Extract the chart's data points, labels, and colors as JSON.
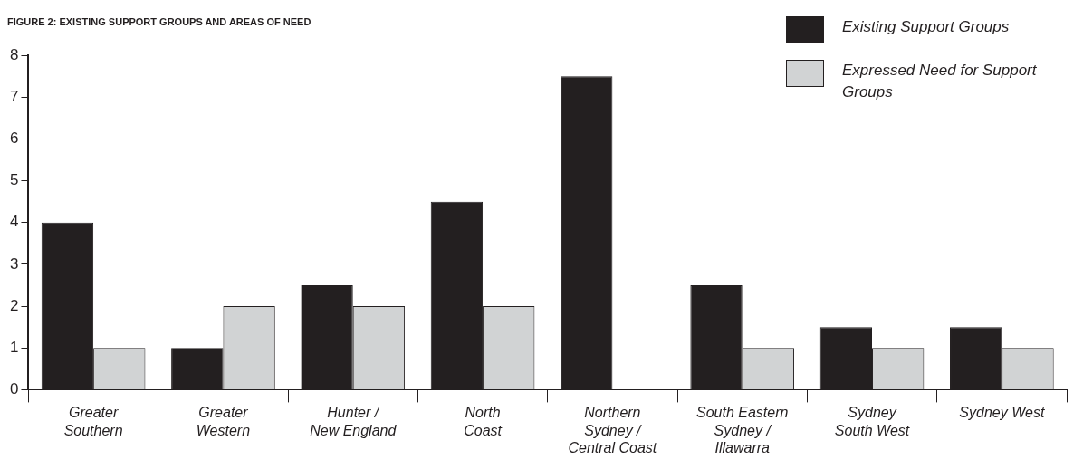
{
  "chart_data": {
    "type": "bar",
    "title": "FIGURE 2: EXISTING SUPPORT GROUPS AND AREAS OF NEED",
    "categories": [
      "Greater\nSouthern",
      "Greater\nWestern",
      "Hunter /\nNew England",
      "North\nCoast",
      "Northern\nSydney /\nCentral Coast",
      "South Eastern\nSydney /\nIllawarra",
      "Sydney\nSouth West",
      "Sydney West"
    ],
    "series": [
      {
        "name": "Existing Support Groups",
        "color": "#231f20",
        "values": [
          4,
          1,
          2.5,
          4.5,
          7.5,
          2.5,
          1.5,
          1.5
        ]
      },
      {
        "name": "Expressed Need for Support Groups",
        "color": "#d1d3d4",
        "values": [
          1,
          2,
          2,
          2,
          0,
          1,
          1,
          1
        ]
      }
    ],
    "ylim": [
      0,
      8
    ],
    "yticks": [
      0,
      1,
      2,
      3,
      4,
      5,
      6,
      7,
      8
    ],
    "grid": false,
    "legend": "top right"
  }
}
